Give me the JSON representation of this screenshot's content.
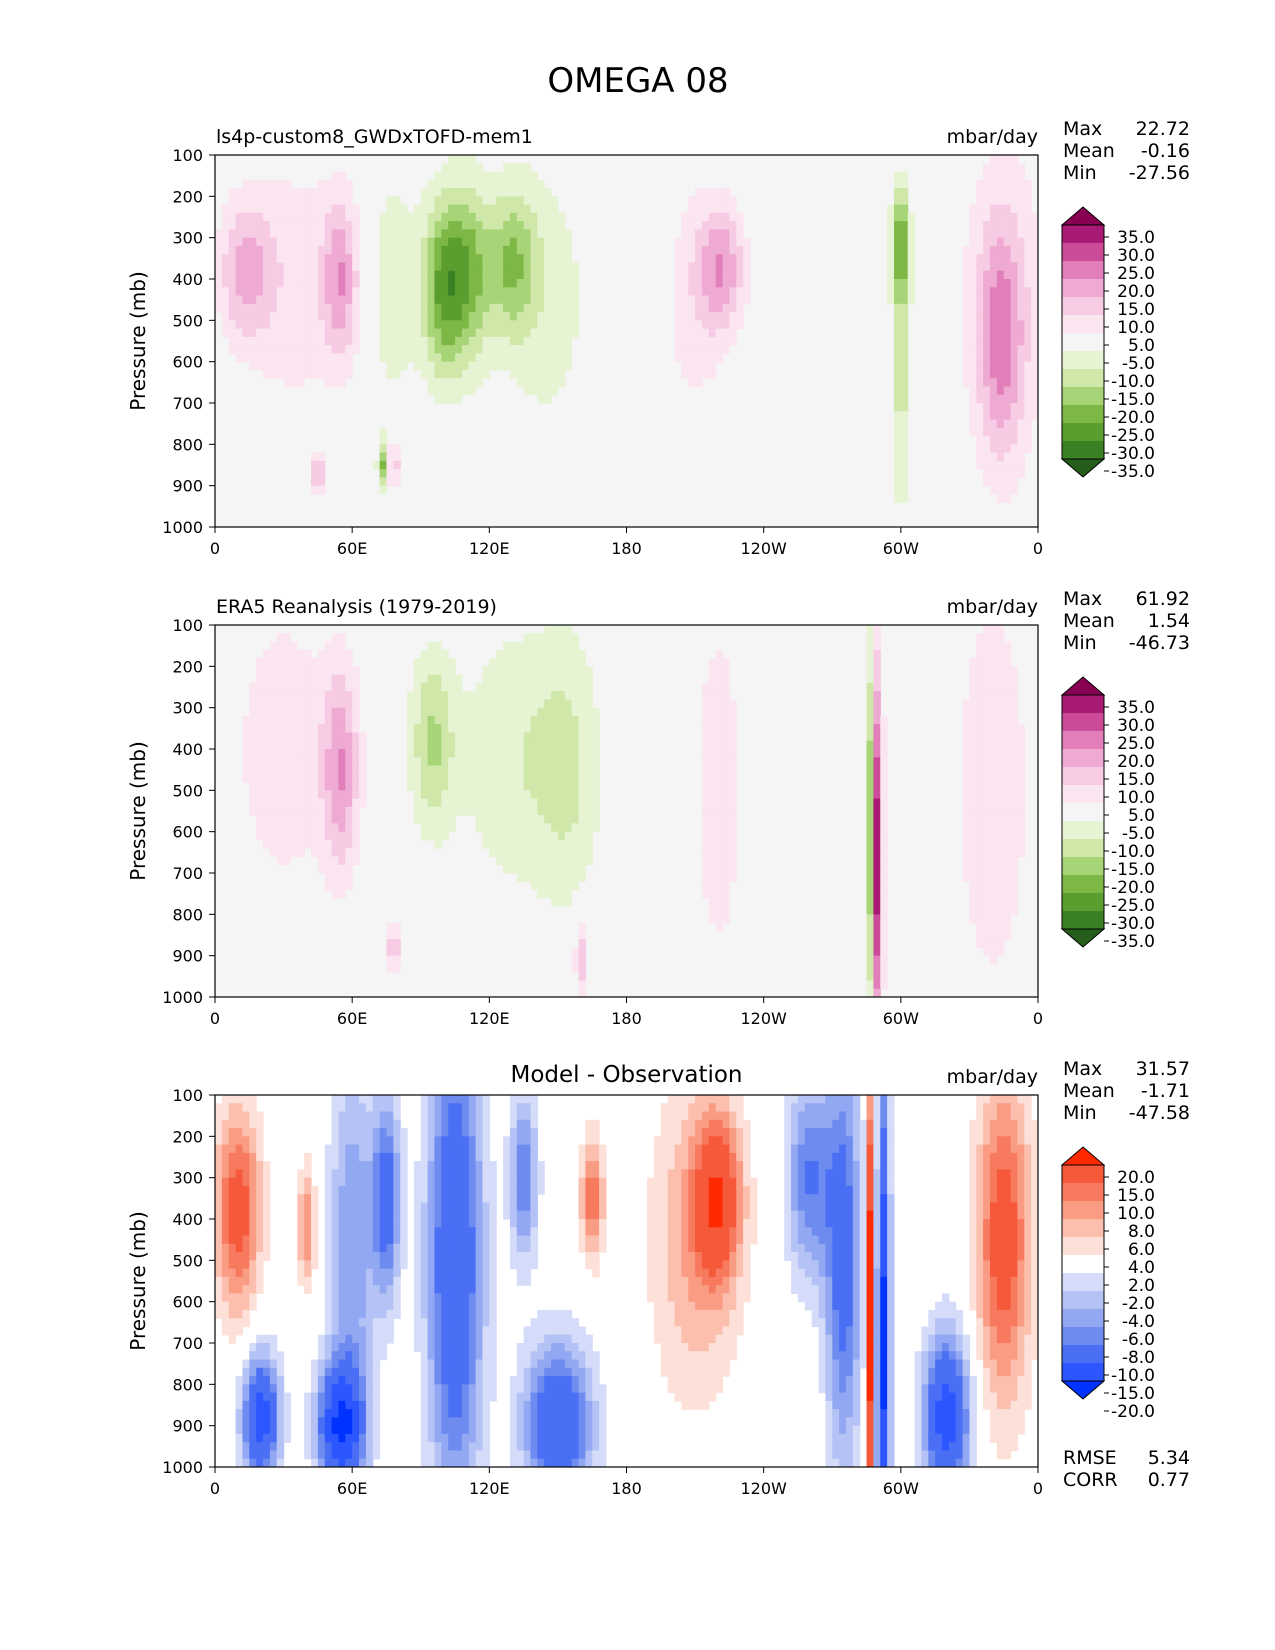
{
  "figure": {
    "title": "OMEGA 08"
  },
  "colors": {
    "omega_levels": [
      "#255e1a",
      "#3b8124",
      "#5a9e30",
      "#7db846",
      "#a6d476",
      "#cfe8a9",
      "#e7f4d4",
      "#f5f5f5",
      "#fbe5f1",
      "#f6cbe3",
      "#eeaad3",
      "#e27fbb",
      "#cc4b99",
      "#a81a74",
      "#880052"
    ],
    "diff_levels": [
      "#0033ff",
      "#2c56ff",
      "#4a6ff5",
      "#6e8cf0",
      "#93a8f2",
      "#b4c2f5",
      "#d4dcfa",
      "#ffffff",
      "#fde0d8",
      "#fcbfae",
      "#fa9c84",
      "#f87a5e",
      "#f5593a",
      "#ff2a00"
    ],
    "axis": "#000000"
  },
  "panels": [
    {
      "id": "model",
      "left_title": "ls4p-custom8_GWDxTOFD-mem1",
      "center_title": "",
      "units": "mbar/day",
      "stats": [
        {
          "label": "Max",
          "value": "22.72"
        },
        {
          "label": "Mean",
          "value": "-0.16"
        },
        {
          "label": "Min",
          "value": "-27.56"
        }
      ],
      "colorbar": "omega"
    },
    {
      "id": "obs",
      "left_title": "ERA5 Reanalysis (1979-2019)",
      "center_title": "",
      "units": "mbar/day",
      "stats": [
        {
          "label": "Max",
          "value": "61.92"
        },
        {
          "label": "Mean",
          "value": "1.54"
        },
        {
          "label": "Min",
          "value": "-46.73"
        }
      ],
      "colorbar": "omega"
    },
    {
      "id": "diff",
      "left_title": "",
      "center_title": "Model - Observation",
      "units": "mbar/day",
      "stats": [
        {
          "label": "Max",
          "value": "31.57"
        },
        {
          "label": "Mean",
          "value": "-1.71"
        },
        {
          "label": "Min",
          "value": "-47.58"
        }
      ],
      "extra_stats": [
        {
          "label": "RMSE",
          "value": "5.34"
        },
        {
          "label": "CORR",
          "value": "0.77"
        }
      ],
      "colorbar": "diff"
    }
  ],
  "colorbars": {
    "omega": {
      "tick_labels": [
        "35.0",
        "30.0",
        "25.0",
        "20.0",
        "15.0",
        "10.0",
        "5.0",
        "-5.0",
        "-10.0",
        "-15.0",
        "-20.0",
        "-25.0",
        "-30.0",
        "-35.0"
      ]
    },
    "diff": {
      "tick_labels": [
        "20.0",
        "15.0",
        "10.0",
        "8.0",
        "6.0",
        "4.0",
        "2.0",
        "-2.0",
        "-4.0",
        "-6.0",
        "-8.0",
        "-10.0",
        "-15.0",
        "-20.0"
      ]
    }
  },
  "chart_data": [
    {
      "type": "heatmap",
      "title": "ls4p-custom8_GWDxTOFD-mem1",
      "xlabel": "",
      "ylabel": "Pressure (mb)",
      "x_ticks": [
        "0",
        "60E",
        "120E",
        "180",
        "120W",
        "60W",
        "0"
      ],
      "y_ticks": [
        "100",
        "200",
        "300",
        "400",
        "500",
        "600",
        "700",
        "800",
        "900",
        "1000"
      ],
      "xlim": [
        0,
        360
      ],
      "ylim": [
        1000,
        100
      ],
      "units": "mbar/day",
      "features": [
        {
          "lon": 13,
          "p": 380,
          "value": 16,
          "lon_w": 12,
          "p_w": 180
        },
        {
          "lon": 55,
          "p": 400,
          "value": 18,
          "lon_w": 8,
          "p_w": 200
        },
        {
          "lon": 35,
          "p": 420,
          "value": 8,
          "lon_w": 20,
          "p_w": 350
        },
        {
          "lon": 100,
          "p": 420,
          "value": -25,
          "lon_w": 10,
          "p_w": 220
        },
        {
          "lon": 112,
          "p": 380,
          "value": -18,
          "lon_w": 10,
          "p_w": 220
        },
        {
          "lon": 130,
          "p": 360,
          "value": -17,
          "lon_w": 10,
          "p_w": 180
        },
        {
          "lon": 145,
          "p": 450,
          "value": -8,
          "lon_w": 20,
          "p_w": 350
        },
        {
          "lon": 78,
          "p": 420,
          "value": -9,
          "lon_w": 10,
          "p_w": 300
        },
        {
          "lon": 222,
          "p": 370,
          "value": 17,
          "lon_w": 10,
          "p_w": 150
        },
        {
          "lon": 210,
          "p": 450,
          "value": 8,
          "lon_w": 15,
          "p_w": 300
        },
        {
          "lon": 300,
          "p": 320,
          "value": -22,
          "lon_w": 4,
          "p_w": 150
        },
        {
          "lon": 300,
          "p": 650,
          "value": -12,
          "lon_w": 4,
          "p_w": 350
        },
        {
          "lon": 344,
          "p": 550,
          "value": 17,
          "lon_w": 10,
          "p_w": 280
        },
        {
          "lon": 345,
          "p": 450,
          "value": 8,
          "lon_w": 22,
          "p_w": 450
        },
        {
          "lon": 45,
          "p": 870,
          "value": 22,
          "lon_w": 2,
          "p_w": 50
        },
        {
          "lon": 78,
          "p": 850,
          "value": 20,
          "lon_w": 2,
          "p_w": 60
        },
        {
          "lon": 73,
          "p": 850,
          "value": -22,
          "lon_w": 2,
          "p_w": 60
        }
      ]
    },
    {
      "type": "heatmap",
      "title": "ERA5 Reanalysis (1979-2019)",
      "xlabel": "",
      "ylabel": "Pressure (mb)",
      "x_ticks": [
        "0",
        "60E",
        "120E",
        "180",
        "120W",
        "60W",
        "0"
      ],
      "y_ticks": [
        "100",
        "200",
        "300",
        "400",
        "500",
        "600",
        "700",
        "800",
        "900",
        "1000"
      ],
      "xlim": [
        0,
        360
      ],
      "ylim": [
        1000,
        100
      ],
      "units": "mbar/day",
      "features": [
        {
          "lon": 55,
          "p": 450,
          "value": 18,
          "lon_w": 8,
          "p_w": 250
        },
        {
          "lon": 30,
          "p": 400,
          "value": 8,
          "lon_w": 25,
          "p_w": 400
        },
        {
          "lon": 95,
          "p": 380,
          "value": -15,
          "lon_w": 10,
          "p_w": 220
        },
        {
          "lon": 130,
          "p": 420,
          "value": -9,
          "lon_w": 25,
          "p_w": 350
        },
        {
          "lon": 155,
          "p": 450,
          "value": -9,
          "lon_w": 15,
          "p_w": 350
        },
        {
          "lon": 290,
          "p": 650,
          "value": 40,
          "lon_w": 2,
          "p_w": 450
        },
        {
          "lon": 287,
          "p": 600,
          "value": -22,
          "lon_w": 2,
          "p_w": 450
        },
        {
          "lon": 340,
          "p": 500,
          "value": 8,
          "lon_w": 20,
          "p_w": 600
        },
        {
          "lon": 220,
          "p": 500,
          "value": 8,
          "lon_w": 12,
          "p_w": 500
        },
        {
          "lon": 160,
          "p": 900,
          "value": 15,
          "lon_w": 3,
          "p_w": 100
        },
        {
          "lon": 78,
          "p": 880,
          "value": 18,
          "lon_w": 2,
          "p_w": 80
        }
      ]
    },
    {
      "type": "heatmap",
      "title": "Model - Observation",
      "xlabel": "",
      "ylabel": "Pressure (mb)",
      "x_ticks": [
        "0",
        "60E",
        "120E",
        "180",
        "120W",
        "60W",
        "0"
      ],
      "y_ticks": [
        "100",
        "200",
        "300",
        "400",
        "500",
        "600",
        "700",
        "800",
        "900",
        "1000"
      ],
      "xlim": [
        0,
        360
      ],
      "ylim": [
        1000,
        100
      ],
      "units": "mbar/day",
      "features": [
        {
          "lon": 10,
          "p": 380,
          "value": 12,
          "lon_w": 10,
          "p_w": 250
        },
        {
          "lon": 60,
          "p": 450,
          "value": -8,
          "lon_w": 10,
          "p_w": 450
        },
        {
          "lon": 75,
          "p": 350,
          "value": -12,
          "lon_w": 6,
          "p_w": 250
        },
        {
          "lon": 105,
          "p": 500,
          "value": -15,
          "lon_w": 12,
          "p_w": 600
        },
        {
          "lon": 135,
          "p": 300,
          "value": -10,
          "lon_w": 6,
          "p_w": 200
        },
        {
          "lon": 150,
          "p": 900,
          "value": -15,
          "lon_w": 15,
          "p_w": 200
        },
        {
          "lon": 55,
          "p": 900,
          "value": -20,
          "lon_w": 10,
          "p_w": 150
        },
        {
          "lon": 20,
          "p": 880,
          "value": -18,
          "lon_w": 8,
          "p_w": 150
        },
        {
          "lon": 220,
          "p": 350,
          "value": 12,
          "lon_w": 10,
          "p_w": 200
        },
        {
          "lon": 210,
          "p": 450,
          "value": 6,
          "lon_w": 20,
          "p_w": 400
        },
        {
          "lon": 260,
          "p": 300,
          "value": -10,
          "lon_w": 10,
          "p_w": 250
        },
        {
          "lon": 287,
          "p": 600,
          "value": 22,
          "lon_w": 2,
          "p_w": 500
        },
        {
          "lon": 292,
          "p": 700,
          "value": -22,
          "lon_w": 3,
          "p_w": 600
        },
        {
          "lon": 275,
          "p": 500,
          "value": -12,
          "lon_w": 8,
          "p_w": 500
        },
        {
          "lon": 320,
          "p": 880,
          "value": -18,
          "lon_w": 10,
          "p_w": 200
        },
        {
          "lon": 345,
          "p": 450,
          "value": 12,
          "lon_w": 12,
          "p_w": 400
        },
        {
          "lon": 40,
          "p": 420,
          "value": 8,
          "lon_w": 4,
          "p_w": 150
        },
        {
          "lon": 165,
          "p": 350,
          "value": 10,
          "lon_w": 5,
          "p_w": 150
        }
      ]
    }
  ]
}
